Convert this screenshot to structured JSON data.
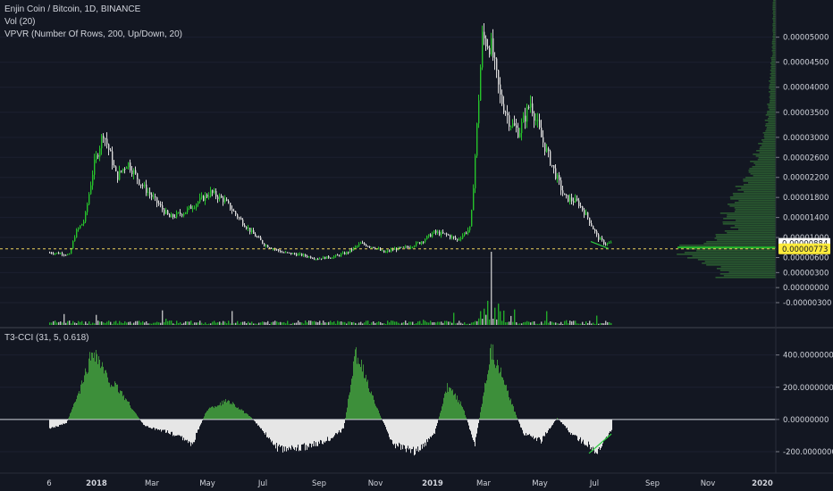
{
  "legend": {
    "symbol": "Enjin Coin / Bitcoin, 1D, BINANCE",
    "volume": "Vol (20)",
    "vpvr": "VPVR (Number Of Rows, 200, Up/Down, 20)",
    "cci": "T3-CCI (31, 5, 0.618)"
  },
  "colors": {
    "background": "#131722",
    "up": "#26c22b",
    "down": "#d9d9d9",
    "cci_positive": "#3d8f3a",
    "cci_negative": "#e6e6e6",
    "dashed_line": "#f0d35c",
    "tag_white": "#ffffff",
    "tag_yellow": "#ffeb3b",
    "trendline": "#2ecc40"
  },
  "price_axis": {
    "labels": [
      "0.00005000",
      "0.00004500",
      "0.00004000",
      "0.00003500",
      "0.00003000",
      "0.00002600",
      "0.00002200",
      "0.00001800",
      "0.00001400",
      "0.00001000",
      "0.00000600",
      "0.00000300",
      "0.00000000",
      "-0.00000300"
    ],
    "values": [
      5000,
      4500,
      4000,
      3500,
      3000,
      2600,
      2200,
      1800,
      1400,
      1000,
      600,
      300,
      0,
      -300
    ],
    "current_tag": "0.00000884",
    "current_value": 884,
    "line_tag": "0.00000773",
    "line_value": 773,
    "unit_note": "values in units of 1e-8"
  },
  "cci_axis": {
    "labels": [
      "400.00000000",
      "200.00000000",
      "0.00000000",
      "-200.00000000"
    ],
    "values": [
      400,
      200,
      0,
      -200
    ]
  },
  "time_axis": {
    "labels": [
      "6",
      "2018",
      "Mar",
      "May",
      "Jul",
      "Sep",
      "Nov",
      "2019",
      "Mar",
      "May",
      "Jul",
      "Sep",
      "Nov",
      "2020"
    ],
    "bold": [
      false,
      true,
      false,
      false,
      false,
      false,
      false,
      true,
      false,
      false,
      false,
      false,
      false,
      true
    ]
  },
  "chart_data": {
    "type": "candlestick",
    "x_range": [
      "2017-11-06",
      "2020-01-15"
    ],
    "price": {
      "x": [
        "2017-11-06",
        "2017-11-20",
        "2017-11-28",
        "2017-12-05",
        "2017-12-15",
        "2017-12-25",
        "2018-01-05",
        "2018-01-12",
        "2018-01-20",
        "2018-02-01",
        "2018-02-15",
        "2018-03-01",
        "2018-03-20",
        "2018-04-05",
        "2018-04-20",
        "2018-05-05",
        "2018-05-20",
        "2018-06-05",
        "2018-06-20",
        "2018-07-05",
        "2018-07-25",
        "2018-08-15",
        "2018-09-01",
        "2018-09-20",
        "2018-10-05",
        "2018-10-20",
        "2018-11-05",
        "2018-11-15",
        "2018-11-25",
        "2018-12-10",
        "2018-12-25",
        "2019-01-10",
        "2019-01-25",
        "2019-02-05",
        "2019-02-20",
        "2019-02-28",
        "2019-03-05",
        "2019-03-15",
        "2019-03-25",
        "2019-04-05",
        "2019-04-15",
        "2019-04-28",
        "2019-05-10",
        "2019-05-25",
        "2019-06-05",
        "2019-06-20",
        "2019-07-01",
        "2019-07-12",
        "2019-07-20",
        "2019-07-28"
      ],
      "close": [
        700,
        680,
        650,
        1100,
        1350,
        2400,
        3100,
        2700,
        2200,
        2500,
        2100,
        1800,
        1400,
        1500,
        1700,
        1900,
        1750,
        1400,
        1100,
        850,
        700,
        650,
        580,
        620,
        700,
        880,
        800,
        700,
        760,
        800,
        900,
        1100,
        1050,
        950,
        1200,
        3500,
        5000,
        4800,
        3800,
        3300,
        3100,
        3700,
        3000,
        2300,
        1800,
        1700,
        1400,
        1000,
        880,
        884
      ],
      "ylim": [
        -300,
        5350
      ]
    },
    "cci": {
      "x": [
        "2017-11-06",
        "2017-11-25",
        "2017-12-10",
        "2017-12-25",
        "2018-01-10",
        "2018-01-25",
        "2018-02-20",
        "2018-03-20",
        "2018-04-15",
        "2018-05-01",
        "2018-05-25",
        "2018-06-20",
        "2018-07-20",
        "2018-08-20",
        "2018-09-15",
        "2018-10-01",
        "2018-10-15",
        "2018-11-05",
        "2018-11-25",
        "2018-12-20",
        "2019-01-10",
        "2019-01-25",
        "2019-02-10",
        "2019-02-25",
        "2019-03-15",
        "2019-04-01",
        "2019-04-20",
        "2019-05-10",
        "2019-05-28",
        "2019-06-15",
        "2019-06-30",
        "2019-07-12",
        "2019-07-28"
      ],
      "values": [
        -60,
        -20,
        180,
        440,
        250,
        170,
        -40,
        -80,
        -150,
        60,
        120,
        10,
        -180,
        -170,
        -120,
        -60,
        420,
        100,
        -150,
        -200,
        -100,
        200,
        100,
        -160,
        450,
        190,
        -90,
        -130,
        10,
        -100,
        -150,
        -200,
        -60
      ],
      "ylim": [
        -250,
        470
      ]
    },
    "vpvr": {
      "price_levels": [
        300,
        500,
        700,
        800,
        900,
        1000,
        1100,
        1200,
        1400,
        1600,
        1800,
        2000,
        2200,
        2400,
        2600,
        2800,
        3000,
        3300,
        3700,
        4200,
        4700,
        5200
      ],
      "volume": [
        55,
        75,
        90,
        100,
        80,
        65,
        55,
        45,
        55,
        50,
        45,
        40,
        30,
        25,
        22,
        18,
        14,
        10,
        8,
        6,
        4,
        3
      ]
    }
  }
}
